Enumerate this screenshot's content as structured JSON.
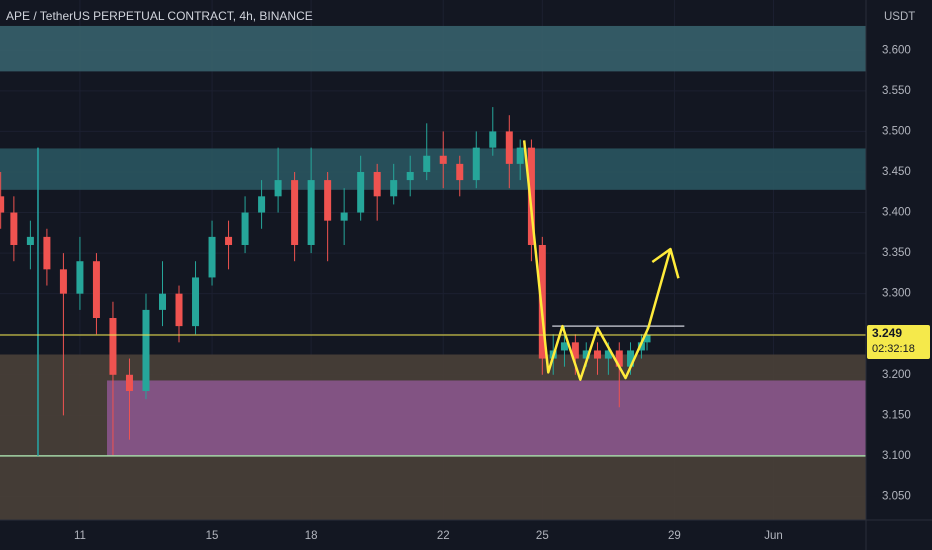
{
  "chart_data": {
    "type": "candlestick",
    "title": "APE / TetherUS PERPETUAL CONTRACT, 4h, BINANCE",
    "y_unit": "USDT",
    "up_color": "#26a69a",
    "down_color": "#ef5350",
    "x": [
      8.6,
      9,
      9.5,
      10,
      10.5,
      11,
      11.5,
      12,
      12.5,
      13,
      13.5,
      14,
      14.5,
      15,
      15.5,
      16,
      16.5,
      17,
      17.5,
      18,
      18.5,
      19,
      19.5,
      20,
      20.5,
      21,
      21.5,
      22,
      22.5,
      23,
      23.5,
      24,
      24.33,
      24.67,
      25,
      25.33,
      25.67,
      26,
      26.33,
      26.67,
      27,
      27.33,
      27.67,
      28,
      28.17
    ],
    "open": [
      3.42,
      3.4,
      3.36,
      3.37,
      3.33,
      3.3,
      3.34,
      3.27,
      3.2,
      3.18,
      3.28,
      3.3,
      3.26,
      3.32,
      3.37,
      3.36,
      3.4,
      3.42,
      3.44,
      3.36,
      3.44,
      3.39,
      3.4,
      3.45,
      3.42,
      3.44,
      3.45,
      3.47,
      3.46,
      3.44,
      3.48,
      3.5,
      3.46,
      3.48,
      3.36,
      3.22,
      3.23,
      3.24,
      3.22,
      3.23,
      3.22,
      3.23,
      3.21,
      3.23,
      3.24
    ],
    "high": [
      3.45,
      3.42,
      3.39,
      3.38,
      3.35,
      3.37,
      3.35,
      3.29,
      3.22,
      3.3,
      3.34,
      3.31,
      3.34,
      3.39,
      3.39,
      3.42,
      3.44,
      3.48,
      3.45,
      3.48,
      3.45,
      3.43,
      3.47,
      3.46,
      3.46,
      3.47,
      3.51,
      3.5,
      3.47,
      3.5,
      3.53,
      3.52,
      3.49,
      3.49,
      3.37,
      3.25,
      3.26,
      3.25,
      3.24,
      3.24,
      3.24,
      3.24,
      3.24,
      3.25,
      3.26
    ],
    "low": [
      3.38,
      3.34,
      3.33,
      3.31,
      3.15,
      3.28,
      3.25,
      3.1,
      3.12,
      3.17,
      3.26,
      3.24,
      3.25,
      3.31,
      3.33,
      3.35,
      3.38,
      3.4,
      3.34,
      3.35,
      3.34,
      3.36,
      3.39,
      3.39,
      3.41,
      3.42,
      3.44,
      3.43,
      3.42,
      3.43,
      3.47,
      3.43,
      3.44,
      3.34,
      3.2,
      3.2,
      3.21,
      3.2,
      3.21,
      3.2,
      3.2,
      3.16,
      3.2,
      3.22,
      3.23
    ],
    "close": [
      3.4,
      3.36,
      3.37,
      3.33,
      3.3,
      3.34,
      3.27,
      3.2,
      3.18,
      3.28,
      3.3,
      3.26,
      3.32,
      3.37,
      3.36,
      3.4,
      3.42,
      3.44,
      3.36,
      3.44,
      3.39,
      3.4,
      3.45,
      3.42,
      3.44,
      3.45,
      3.47,
      3.46,
      3.44,
      3.48,
      3.5,
      3.46,
      3.48,
      3.36,
      3.22,
      3.23,
      3.24,
      3.22,
      3.23,
      3.22,
      3.23,
      3.21,
      3.23,
      3.24,
      3.249
    ],
    "xlim": [
      8.58,
      34.8
    ],
    "ylim": [
      3.021,
      3.662
    ],
    "xticks": [
      11,
      15,
      18,
      22,
      25,
      29,
      {
        "value": 32,
        "label": "Jun"
      }
    ],
    "yticks": [
      {
        "value": 3.05,
        "label": "3.050"
      },
      {
        "value": 3.1,
        "label": "3.100"
      },
      {
        "value": 3.15,
        "label": "3.150"
      },
      {
        "value": 3.2,
        "label": "3.200"
      },
      {
        "value": 3.25,
        "label": "3.250"
      },
      {
        "value": 3.3,
        "label": "3.300"
      },
      {
        "value": 3.35,
        "label": "3.350"
      },
      {
        "value": 3.4,
        "label": "3.400"
      },
      {
        "value": 3.45,
        "label": "3.450"
      },
      {
        "value": 3.5,
        "label": "3.500"
      },
      {
        "value": 3.55,
        "label": "3.550"
      },
      {
        "value": 3.6,
        "label": "3.600"
      }
    ],
    "grid": true,
    "last_price": 3.249,
    "last_price_color": "#f5e94b",
    "countdown": "02:32:18",
    "zones": [
      {
        "low": 3.574,
        "high": 3.63,
        "color": "#37606b",
        "x_start": 8.58
      },
      {
        "low": 3.428,
        "high": 3.479,
        "color": "#2a5560",
        "x_start": 8.58
      },
      {
        "low": 3.021,
        "high": 3.225,
        "color": "#4a4039",
        "x_start": 8.58
      },
      {
        "low": 3.1,
        "high": 3.193,
        "color": "#8a558c",
        "x_start": 11.82
      }
    ],
    "hlines": [
      {
        "value": 3.1,
        "color": "#a5d6a7"
      }
    ],
    "segments": [
      {
        "x": [
          25.3,
          29.3
        ],
        "y": [
          3.26,
          3.26
        ],
        "color": "#b2b5be"
      },
      {
        "x": [
          9.73,
          9.73
        ],
        "y": [
          3.48,
          3.1
        ],
        "color": "#26a6a6"
      }
    ],
    "drawing": {
      "color": "#ffeb3b",
      "x": [
        24.45,
        25.18,
        25.61,
        26.15,
        26.67,
        27.52,
        28.21,
        28.88
      ],
      "y": [
        3.489,
        3.203,
        3.26,
        3.194,
        3.258,
        3.196,
        3.258,
        3.355
      ],
      "head_x": [
        28.33,
        28.88,
        29.12
      ],
      "head_y": [
        3.339,
        3.355,
        3.319
      ]
    }
  }
}
